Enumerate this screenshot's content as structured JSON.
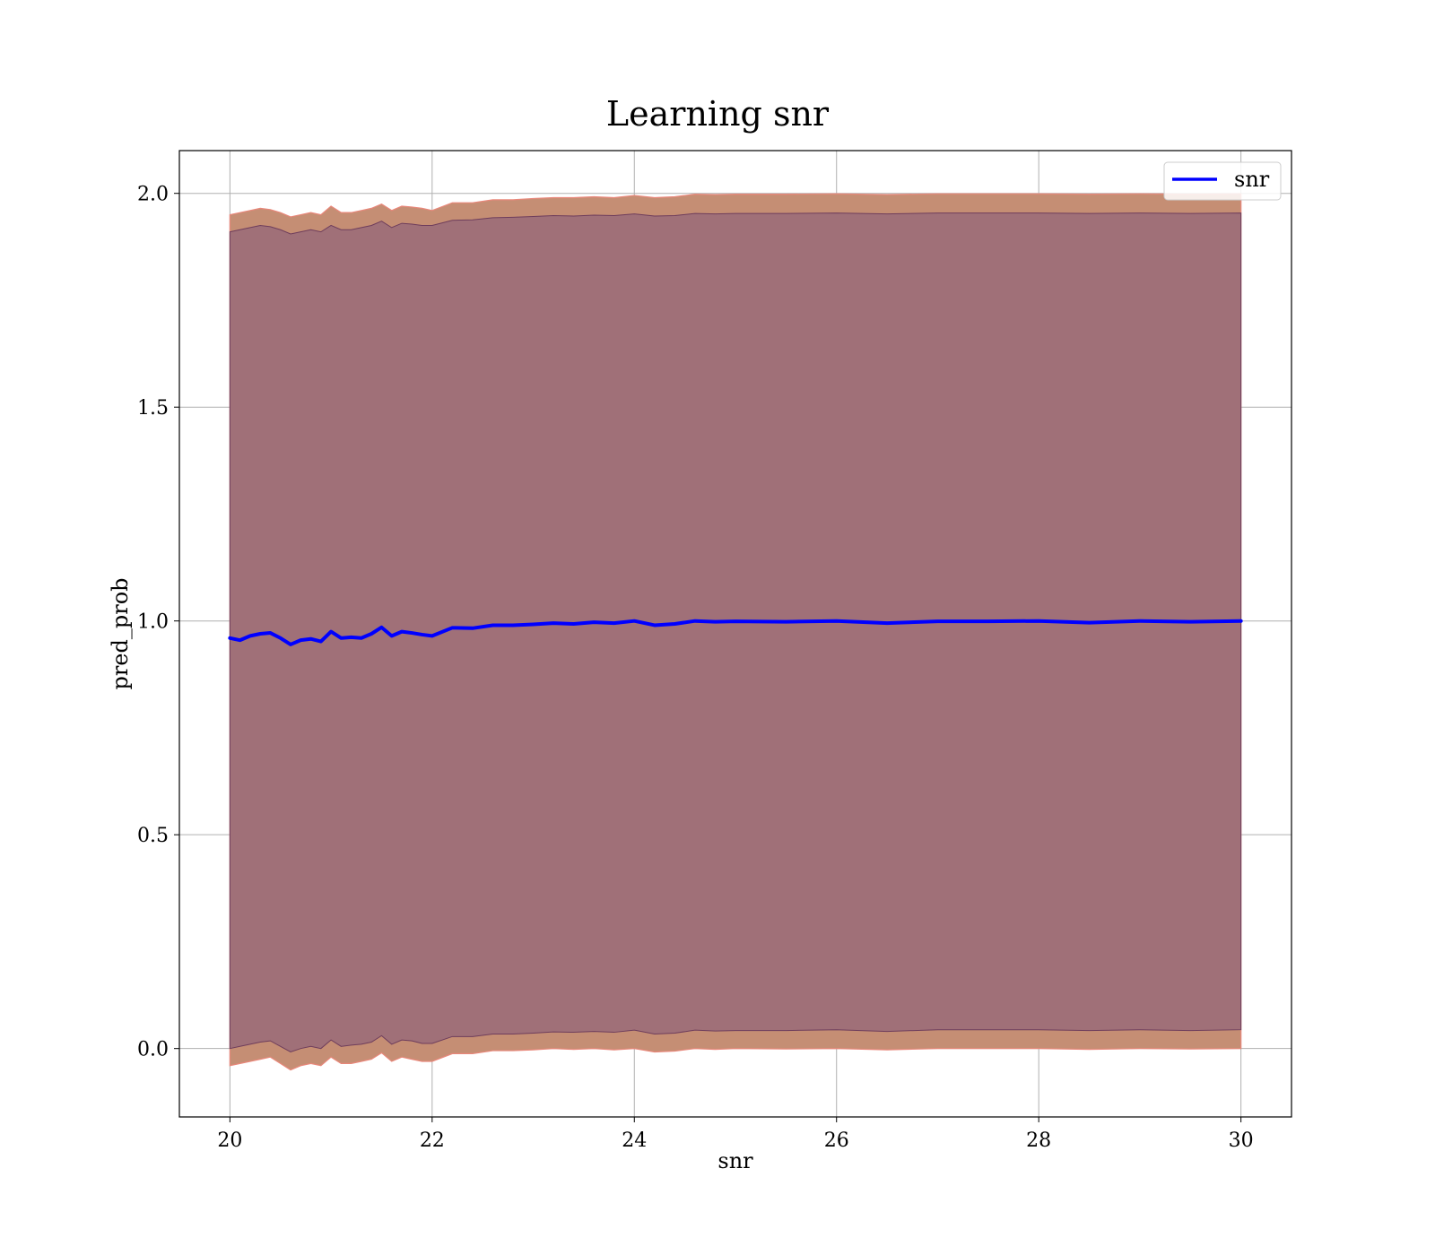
{
  "chart_data": {
    "type": "line",
    "title": "Learning snr",
    "xlabel": "snr",
    "ylabel": "pred_prob",
    "xlim": [
      19.5,
      30.5
    ],
    "ylim": [
      -0.16,
      2.1
    ],
    "xticks": [
      20,
      22,
      24,
      26,
      28,
      30
    ],
    "xtick_labels": [
      "20",
      "22",
      "24",
      "26",
      "28",
      "30"
    ],
    "yticks": [
      0.0,
      0.5,
      1.0,
      1.5,
      2.0
    ],
    "ytick_labels": [
      "0.0",
      "0.5",
      "1.0",
      "1.5",
      "2.0"
    ],
    "grid": true,
    "legend_position": "top-right",
    "colors": {
      "line": "#0000ff",
      "outer_band": "#c58e74",
      "outer_band_edge": "#e8877a",
      "inner_band": "#a07078",
      "inner_band_edge": "#6e3d5c",
      "grid": "#b0b0b0"
    },
    "x": [
      20.0,
      20.1,
      20.2,
      20.3,
      20.4,
      20.5,
      20.6,
      20.7,
      20.8,
      20.9,
      21.0,
      21.1,
      21.2,
      21.3,
      21.4,
      21.5,
      21.6,
      21.7,
      21.8,
      21.9,
      22.0,
      22.2,
      22.4,
      22.6,
      22.8,
      23.0,
      23.2,
      23.4,
      23.6,
      23.8,
      24.0,
      24.2,
      24.4,
      24.6,
      24.8,
      25.0,
      25.5,
      26.0,
      26.5,
      27.0,
      27.5,
      28.0,
      28.5,
      29.0,
      29.5,
      30.0
    ],
    "series": [
      {
        "name": "snr",
        "values": [
          0.96,
          0.955,
          0.965,
          0.97,
          0.972,
          0.96,
          0.945,
          0.955,
          0.958,
          0.952,
          0.975,
          0.96,
          0.962,
          0.96,
          0.97,
          0.985,
          0.965,
          0.975,
          0.972,
          0.968,
          0.965,
          0.984,
          0.983,
          0.99,
          0.99,
          0.992,
          0.995,
          0.993,
          0.997,
          0.995,
          1.0,
          0.99,
          0.993,
          1.0,
          0.998,
          0.999,
          0.998,
          1.0,
          0.995,
          0.999,
          0.999,
          1.0,
          0.996,
          1.0,
          0.998,
          1.0
        ],
        "outer_upper": [
          1.95,
          1.955,
          1.96,
          1.965,
          1.962,
          1.955,
          1.945,
          1.95,
          1.955,
          1.95,
          1.97,
          1.955,
          1.955,
          1.96,
          1.965,
          1.975,
          1.96,
          1.97,
          1.968,
          1.965,
          1.96,
          1.978,
          1.978,
          1.985,
          1.985,
          1.988,
          1.99,
          1.99,
          1.992,
          1.99,
          1.995,
          1.99,
          1.992,
          1.998,
          1.997,
          1.998,
          1.998,
          1.999,
          1.997,
          1.999,
          1.999,
          1.999,
          1.998,
          1.999,
          1.998,
          1.999
        ],
        "outer_lower": [
          -0.04,
          -0.035,
          -0.03,
          -0.025,
          -0.02,
          -0.035,
          -0.05,
          -0.04,
          -0.035,
          -0.04,
          -0.02,
          -0.035,
          -0.035,
          -0.03,
          -0.025,
          -0.01,
          -0.03,
          -0.02,
          -0.025,
          -0.03,
          -0.03,
          -0.012,
          -0.012,
          -0.005,
          -0.005,
          -0.003,
          0.0,
          -0.002,
          0.0,
          -0.003,
          0.0,
          -0.008,
          -0.006,
          0.0,
          -0.002,
          0.0,
          -0.001,
          0.0,
          -0.003,
          0.0,
          0.0,
          0.0,
          -0.002,
          0.0,
          -0.001,
          0.0
        ],
        "inner_upper": [
          1.91,
          1.915,
          1.92,
          1.925,
          1.922,
          1.915,
          1.905,
          1.91,
          1.915,
          1.91,
          1.925,
          1.915,
          1.915,
          1.92,
          1.925,
          1.935,
          1.92,
          1.93,
          1.928,
          1.925,
          1.925,
          1.937,
          1.938,
          1.943,
          1.944,
          1.946,
          1.948,
          1.947,
          1.949,
          1.948,
          1.952,
          1.947,
          1.948,
          1.953,
          1.952,
          1.953,
          1.953,
          1.954,
          1.952,
          1.954,
          1.954,
          1.954,
          1.953,
          1.954,
          1.953,
          1.954
        ],
        "inner_lower": [
          0.0,
          0.005,
          0.01,
          0.015,
          0.018,
          0.005,
          -0.008,
          0.0,
          0.005,
          0.0,
          0.02,
          0.005,
          0.008,
          0.01,
          0.015,
          0.03,
          0.01,
          0.02,
          0.018,
          0.012,
          0.012,
          0.028,
          0.028,
          0.034,
          0.034,
          0.036,
          0.039,
          0.038,
          0.04,
          0.038,
          0.043,
          0.034,
          0.036,
          0.043,
          0.041,
          0.042,
          0.042,
          0.044,
          0.04,
          0.044,
          0.044,
          0.044,
          0.042,
          0.044,
          0.042,
          0.044
        ]
      }
    ]
  }
}
